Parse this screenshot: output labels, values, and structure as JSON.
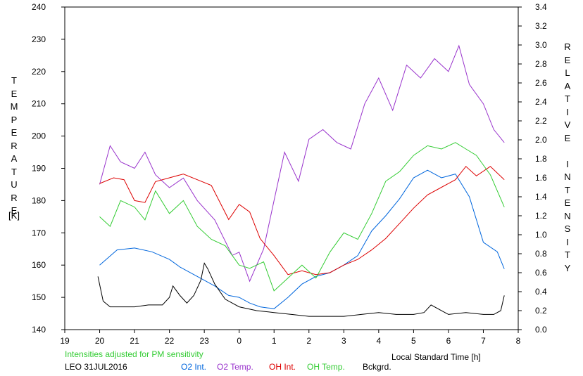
{
  "chart_data": {
    "type": "line",
    "xlabel": "Local Standard Time [h]",
    "x_ticks": [
      "19",
      "20",
      "21",
      "22",
      "23",
      "0",
      "1",
      "2",
      "3",
      "4",
      "5",
      "6",
      "7",
      "8"
    ],
    "xlim": [
      19,
      32
    ],
    "ylabel_left": "TEMPERATURE",
    "ylabel_left_unit": "[K]",
    "ylim_left": [
      140,
      240
    ],
    "yticks_left": [
      "140",
      "150",
      "160",
      "170",
      "180",
      "190",
      "200",
      "210",
      "220",
      "230",
      "240"
    ],
    "ylabel_right": "RELATIVE INTENSITY",
    "ylim_right": [
      0,
      3.4
    ],
    "yticks_right": [
      "0.0",
      "0.2",
      "0.4",
      "0.6",
      "0.8",
      "1.0",
      "1.2",
      "1.4",
      "1.6",
      "1.8",
      "2.0",
      "2.2",
      "2.4",
      "2.6",
      "2.8",
      "3.0",
      "3.2",
      "3.4"
    ],
    "note": "Intensities adjusted for PM sensitivity",
    "station_date": "LEO 31JUL2016",
    "grid": false,
    "series": [
      {
        "name": "O2 Int.",
        "axis": "right",
        "color": "#0066dd",
        "x": [
          20.0,
          20.5,
          21.0,
          21.5,
          22.0,
          22.3,
          22.7,
          23.0,
          23.3,
          23.7,
          24.0,
          24.3,
          24.6,
          25.0,
          25.4,
          25.8,
          26.2,
          26.6,
          27.0,
          27.4,
          27.8,
          28.2,
          28.6,
          29.0,
          29.4,
          29.8,
          30.2,
          30.6,
          31.0,
          31.4,
          31.6
        ],
        "y": [
          0.68,
          0.84,
          0.86,
          0.82,
          0.74,
          0.66,
          0.58,
          0.52,
          0.46,
          0.36,
          0.34,
          0.28,
          0.24,
          0.22,
          0.34,
          0.48,
          0.56,
          0.6,
          0.68,
          0.78,
          1.04,
          1.2,
          1.38,
          1.6,
          1.68,
          1.6,
          1.64,
          1.4,
          0.92,
          0.82,
          0.64
        ]
      },
      {
        "name": "O2 Temp.",
        "axis": "left",
        "color": "#9933cc",
        "x": [
          20.0,
          20.3,
          20.6,
          21.0,
          21.3,
          21.6,
          22.0,
          22.4,
          22.8,
          23.3,
          23.8,
          24.0,
          24.3,
          24.7,
          25.0,
          25.3,
          25.7,
          26.0,
          26.4,
          26.8,
          27.2,
          27.6,
          28.0,
          28.4,
          28.8,
          29.2,
          29.6,
          30.0,
          30.3,
          30.6,
          31.0,
          31.3,
          31.6
        ],
        "y": [
          185,
          197,
          192,
          190,
          195,
          188,
          184,
          187,
          180,
          174,
          163,
          164,
          155,
          165,
          180,
          195,
          186,
          199,
          202,
          198,
          196,
          210,
          218,
          208,
          222,
          218,
          224,
          220,
          228,
          216,
          210,
          202,
          198
        ]
      },
      {
        "name": "OH Int.",
        "axis": "right",
        "color": "#dd0000",
        "x": [
          20.0,
          20.4,
          20.7,
          21.0,
          21.3,
          21.6,
          22.0,
          22.4,
          22.8,
          23.2,
          23.7,
          24.0,
          24.3,
          24.6,
          25.0,
          25.4,
          25.8,
          26.2,
          26.6,
          27.0,
          27.4,
          27.8,
          28.2,
          28.6,
          29.0,
          29.4,
          29.8,
          30.2,
          30.5,
          30.8,
          31.2,
          31.6
        ],
        "y": [
          1.54,
          1.6,
          1.58,
          1.36,
          1.34,
          1.56,
          1.6,
          1.64,
          1.58,
          1.52,
          1.16,
          1.32,
          1.24,
          0.96,
          0.78,
          0.58,
          0.62,
          0.58,
          0.6,
          0.68,
          0.74,
          0.84,
          0.96,
          1.12,
          1.28,
          1.42,
          1.5,
          1.58,
          1.72,
          1.62,
          1.72,
          1.58
        ]
      },
      {
        "name": "OH Temp.",
        "axis": "left",
        "color": "#33cc33",
        "x": [
          20.0,
          20.3,
          20.6,
          21.0,
          21.3,
          21.6,
          22.0,
          22.4,
          22.8,
          23.2,
          23.6,
          24.0,
          24.3,
          24.7,
          25.0,
          25.4,
          25.8,
          26.2,
          26.6,
          27.0,
          27.4,
          27.8,
          28.2,
          28.6,
          29.0,
          29.4,
          29.8,
          30.2,
          30.5,
          30.8,
          31.2,
          31.6
        ],
        "y": [
          175,
          172,
          180,
          178,
          174,
          183,
          176,
          180,
          172,
          168,
          166,
          160,
          159,
          161,
          152,
          156,
          160,
          156,
          164,
          170,
          168,
          176,
          186,
          189,
          194,
          197,
          196,
          198,
          196,
          194,
          188,
          178
        ]
      },
      {
        "name": "Bckgrd.",
        "axis": "right",
        "color": "#000000",
        "x": [
          19.95,
          20.1,
          20.3,
          20.6,
          21.0,
          21.4,
          21.8,
          22.0,
          22.1,
          22.3,
          22.5,
          22.7,
          22.9,
          23.0,
          23.1,
          23.3,
          23.6,
          24.0,
          24.5,
          25.0,
          25.5,
          26.0,
          26.5,
          27.0,
          27.5,
          28.0,
          28.5,
          29.0,
          29.3,
          29.5,
          30.0,
          30.5,
          31.0,
          31.3,
          31.5,
          31.6
        ],
        "y": [
          0.56,
          0.3,
          0.24,
          0.24,
          0.24,
          0.26,
          0.26,
          0.34,
          0.46,
          0.36,
          0.28,
          0.36,
          0.52,
          0.7,
          0.64,
          0.48,
          0.32,
          0.24,
          0.2,
          0.18,
          0.16,
          0.14,
          0.14,
          0.14,
          0.16,
          0.18,
          0.16,
          0.16,
          0.18,
          0.26,
          0.16,
          0.18,
          0.16,
          0.16,
          0.2,
          0.36
        ]
      }
    ]
  }
}
